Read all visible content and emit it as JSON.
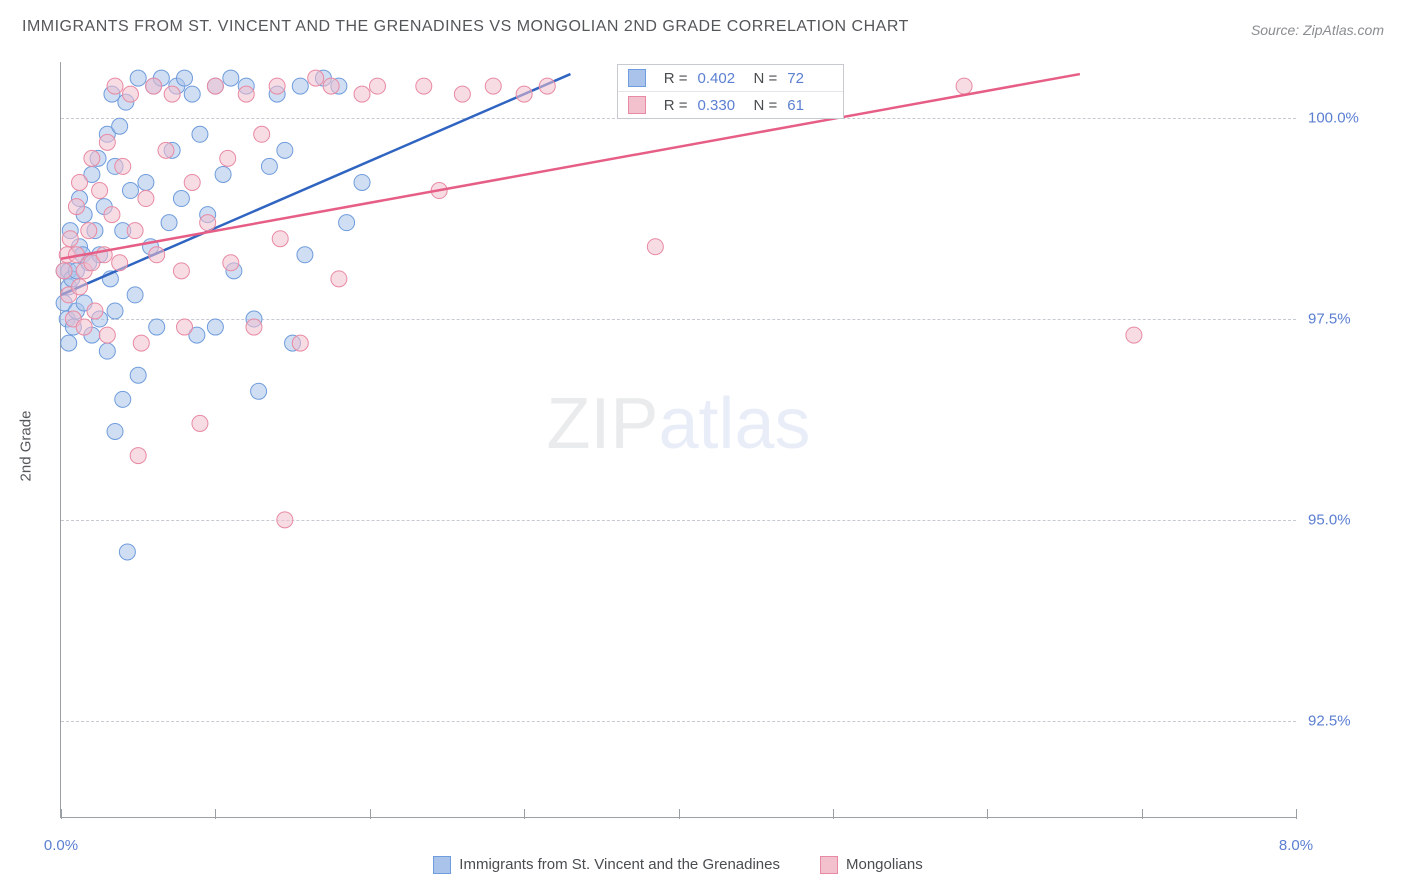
{
  "title": "IMMIGRANTS FROM ST. VINCENT AND THE GRENADINES VS MONGOLIAN 2ND GRADE CORRELATION CHART",
  "source": "Source: ZipAtlas.com",
  "yaxis_label": "2nd Grade",
  "watermark_a": "ZIP",
  "watermark_b": "atlas",
  "chart": {
    "type": "scatter",
    "background_color": "#ffffff",
    "grid_color": "#c7cbd1",
    "axis_color": "#9aa0a6",
    "tick_label_color": "#5b7fd1",
    "xlim": [
      0.0,
      8.0
    ],
    "ylim": [
      91.3,
      100.7
    ],
    "xticks": [
      0.0,
      8.0
    ],
    "xtick_labels": [
      "0.0%",
      "8.0%"
    ],
    "yticks": [
      92.5,
      95.0,
      97.5,
      100.0
    ],
    "ytick_labels": [
      "92.5%",
      "95.0%",
      "97.5%",
      "100.0%"
    ],
    "xtick_positions_pct": [
      0,
      12.5,
      25,
      37.5,
      50,
      62.5,
      75,
      87.5,
      100
    ],
    "marker_radius": 8,
    "marker_opacity": 0.55,
    "line_width": 2.5,
    "series": [
      {
        "name": "Immigrants from St. Vincent and the Grenadines",
        "fill": "#a9c3ea",
        "stroke": "#6f9cdc",
        "line_color": "#2f64c1",
        "R": "0.402",
        "N": "72",
        "trend": {
          "x1": 0.0,
          "y1": 97.8,
          "x2": 3.3,
          "y2": 100.55
        },
        "points": [
          [
            0.02,
            97.7
          ],
          [
            0.02,
            98.1
          ],
          [
            0.04,
            97.5
          ],
          [
            0.05,
            98.1
          ],
          [
            0.05,
            97.9
          ],
          [
            0.06,
            98.6
          ],
          [
            0.07,
            98.0
          ],
          [
            0.08,
            97.4
          ],
          [
            0.1,
            98.1
          ],
          [
            0.1,
            97.6
          ],
          [
            0.12,
            98.4
          ],
          [
            0.12,
            99.0
          ],
          [
            0.14,
            98.3
          ],
          [
            0.15,
            97.7
          ],
          [
            0.15,
            98.8
          ],
          [
            0.18,
            98.2
          ],
          [
            0.2,
            97.3
          ],
          [
            0.2,
            99.3
          ],
          [
            0.22,
            98.6
          ],
          [
            0.24,
            99.5
          ],
          [
            0.25,
            97.5
          ],
          [
            0.25,
            98.3
          ],
          [
            0.28,
            98.9
          ],
          [
            0.3,
            99.8
          ],
          [
            0.3,
            97.1
          ],
          [
            0.32,
            98.0
          ],
          [
            0.33,
            100.3
          ],
          [
            0.35,
            99.4
          ],
          [
            0.35,
            97.6
          ],
          [
            0.38,
            99.9
          ],
          [
            0.4,
            98.6
          ],
          [
            0.4,
            96.5
          ],
          [
            0.42,
            100.2
          ],
          [
            0.45,
            99.1
          ],
          [
            0.48,
            97.8
          ],
          [
            0.5,
            100.5
          ],
          [
            0.5,
            96.8
          ],
          [
            0.55,
            99.2
          ],
          [
            0.58,
            98.4
          ],
          [
            0.6,
            100.4
          ],
          [
            0.62,
            97.4
          ],
          [
            0.65,
            100.5
          ],
          [
            0.7,
            98.7
          ],
          [
            0.72,
            99.6
          ],
          [
            0.75,
            100.4
          ],
          [
            0.78,
            99.0
          ],
          [
            0.8,
            100.5
          ],
          [
            0.85,
            100.3
          ],
          [
            0.88,
            97.3
          ],
          [
            0.9,
            99.8
          ],
          [
            0.95,
            98.8
          ],
          [
            1.0,
            100.4
          ],
          [
            1.0,
            97.4
          ],
          [
            1.05,
            99.3
          ],
          [
            1.1,
            100.5
          ],
          [
            1.12,
            98.1
          ],
          [
            1.2,
            100.4
          ],
          [
            1.25,
            97.5
          ],
          [
            1.28,
            96.6
          ],
          [
            1.35,
            99.4
          ],
          [
            1.4,
            100.3
          ],
          [
            1.45,
            99.6
          ],
          [
            1.5,
            97.2
          ],
          [
            1.55,
            100.4
          ],
          [
            1.58,
            98.3
          ],
          [
            1.7,
            100.5
          ],
          [
            1.85,
            98.7
          ],
          [
            1.8,
            100.4
          ],
          [
            1.95,
            99.2
          ],
          [
            0.43,
            94.6
          ],
          [
            0.35,
            96.1
          ],
          [
            0.05,
            97.2
          ]
        ]
      },
      {
        "name": "Mongolians",
        "fill": "#f3c0cd",
        "stroke": "#e88aa3",
        "line_color": "#e65e86",
        "R": "0.330",
        "N": "61",
        "trend": {
          "x1": 0.0,
          "y1": 98.25,
          "x2": 6.6,
          "y2": 100.55
        },
        "points": [
          [
            0.02,
            98.1
          ],
          [
            0.04,
            98.3
          ],
          [
            0.05,
            97.8
          ],
          [
            0.06,
            98.5
          ],
          [
            0.08,
            97.5
          ],
          [
            0.1,
            98.9
          ],
          [
            0.1,
            98.3
          ],
          [
            0.12,
            97.9
          ],
          [
            0.12,
            99.2
          ],
          [
            0.15,
            98.1
          ],
          [
            0.15,
            97.4
          ],
          [
            0.18,
            98.6
          ],
          [
            0.2,
            99.5
          ],
          [
            0.2,
            98.2
          ],
          [
            0.22,
            97.6
          ],
          [
            0.25,
            99.1
          ],
          [
            0.28,
            98.3
          ],
          [
            0.3,
            99.7
          ],
          [
            0.3,
            97.3
          ],
          [
            0.33,
            98.8
          ],
          [
            0.35,
            100.4
          ],
          [
            0.38,
            98.2
          ],
          [
            0.4,
            99.4
          ],
          [
            0.45,
            100.3
          ],
          [
            0.48,
            98.6
          ],
          [
            0.52,
            97.2
          ],
          [
            0.55,
            99.0
          ],
          [
            0.6,
            100.4
          ],
          [
            0.62,
            98.3
          ],
          [
            0.68,
            99.6
          ],
          [
            0.72,
            100.3
          ],
          [
            0.78,
            98.1
          ],
          [
            0.8,
            97.4
          ],
          [
            0.85,
            99.2
          ],
          [
            0.9,
            96.2
          ],
          [
            0.95,
            98.7
          ],
          [
            1.0,
            100.4
          ],
          [
            1.08,
            99.5
          ],
          [
            1.1,
            98.2
          ],
          [
            1.2,
            100.3
          ],
          [
            1.25,
            97.4
          ],
          [
            1.3,
            99.8
          ],
          [
            1.4,
            100.4
          ],
          [
            1.42,
            98.5
          ],
          [
            1.45,
            95.0
          ],
          [
            1.55,
            97.2
          ],
          [
            1.65,
            100.5
          ],
          [
            1.75,
            100.4
          ],
          [
            1.8,
            98.0
          ],
          [
            1.95,
            100.3
          ],
          [
            2.05,
            100.4
          ],
          [
            2.35,
            100.4
          ],
          [
            2.45,
            99.1
          ],
          [
            2.6,
            100.3
          ],
          [
            2.8,
            100.4
          ],
          [
            3.0,
            100.3
          ],
          [
            3.15,
            100.4
          ],
          [
            3.85,
            98.4
          ],
          [
            5.85,
            100.4
          ],
          [
            6.95,
            97.3
          ],
          [
            0.5,
            95.8
          ]
        ]
      }
    ]
  },
  "stats_box": {
    "rows": [
      {
        "swatch_fill": "#a9c3ea",
        "swatch_stroke": "#6f9cdc",
        "R_label": "R =",
        "R": "0.402",
        "N_label": "N =",
        "N": "72"
      },
      {
        "swatch_fill": "#f3c0cd",
        "swatch_stroke": "#e88aa3",
        "R_label": "R =",
        "R": "0.330",
        "N_label": "N =",
        "N": "61"
      }
    ]
  },
  "bottom_legend": [
    {
      "swatch_fill": "#a9c3ea",
      "swatch_stroke": "#6f9cdc",
      "label": "Immigrants from St. Vincent and the Grenadines"
    },
    {
      "swatch_fill": "#f3c0cd",
      "swatch_stroke": "#e88aa3",
      "label": "Mongolians"
    }
  ]
}
